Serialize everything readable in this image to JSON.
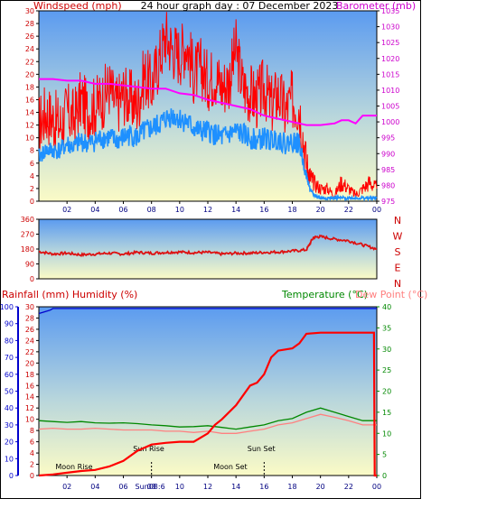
{
  "title": "24 hour graph day : 07 December 2023",
  "colors": {
    "wind": "#ff0000",
    "gust_bg": "#ff0000",
    "wind_avg": "#1e90ff",
    "baro": "#ff00ff",
    "direction": "#dd1111",
    "rain": "#ff0000",
    "humidity": "#0000cc",
    "temperature": "#008800",
    "dewpoint": "#ff8080",
    "sky_top": "#5b9bf0",
    "sky_bottom": "#fbfbc6"
  },
  "chart_data": [
    {
      "type": "line",
      "name": "wind-baro",
      "title": "24 hour graph day : 07 December 2023",
      "ylabel_left": "Windspeed (mph)",
      "ylabel_right": "Barometer (mb)",
      "ylim_left": [
        0,
        30
      ],
      "ylim_right": [
        975,
        1035
      ],
      "yticks_left": [
        "0",
        "2",
        "4",
        "6",
        "8",
        "10",
        "12",
        "14",
        "16",
        "18",
        "20",
        "22",
        "24",
        "26",
        "28",
        "30"
      ],
      "yticks_right": [
        "975",
        "980",
        "985",
        "990",
        "995",
        "1000",
        "1005",
        "1010",
        "1015",
        "1020",
        "1025",
        "1030",
        "1035"
      ],
      "xticks": [
        "02",
        "04",
        "06",
        "08",
        "10",
        "12",
        "14",
        "16",
        "18",
        "20",
        "22",
        "00"
      ],
      "xlim": [
        0,
        24
      ],
      "grid": false,
      "series": [
        {
          "key": "wind_gust",
          "x": [
            0,
            0.5,
            1,
            1.5,
            2,
            2.5,
            3,
            3.5,
            4,
            4.5,
            5,
            5.5,
            6,
            6.5,
            7,
            7.5,
            8,
            8.5,
            9,
            9.5,
            10,
            10.5,
            11,
            11.5,
            12,
            12.5,
            13,
            13.5,
            14,
            14.5,
            15,
            15.5,
            16,
            16.5,
            17,
            17.5,
            18,
            18.5,
            19,
            19.25,
            19.5,
            20,
            20.5,
            21,
            21.5,
            22,
            22.5,
            23,
            23.5,
            24
          ],
          "values": [
            12,
            14,
            13,
            12,
            14,
            13,
            16,
            14,
            15,
            16,
            18,
            15,
            17,
            16,
            15,
            20,
            18,
            22,
            26,
            24,
            23,
            25,
            20,
            21,
            19,
            20,
            18,
            19,
            24,
            18,
            17,
            16,
            18,
            15,
            17,
            14,
            16,
            15,
            6,
            4,
            3,
            2,
            2,
            1,
            3,
            2,
            1,
            2,
            3,
            2
          ]
        },
        {
          "key": "wind_avg",
          "x": [
            0,
            0.5,
            1,
            1.5,
            2,
            2.5,
            3,
            3.5,
            4,
            4.5,
            5,
            5.5,
            6,
            6.5,
            7,
            7.5,
            8,
            8.5,
            9,
            9.5,
            10,
            10.5,
            11,
            11.5,
            12,
            12.5,
            13,
            13.5,
            14,
            14.5,
            15,
            15.5,
            16,
            16.5,
            17,
            17.5,
            18,
            18.5,
            19,
            19.25,
            19.5,
            20,
            20.5,
            21,
            21.5,
            22,
            22.5,
            23,
            23.5,
            24
          ],
          "values": [
            7,
            8,
            8,
            8,
            9,
            8.5,
            9.5,
            9,
            9.5,
            10,
            10,
            9.5,
            10,
            10.5,
            10,
            11,
            11.5,
            12,
            13,
            13.5,
            13,
            12.5,
            11.5,
            11,
            11,
            10.5,
            10,
            10.5,
            11,
            10.5,
            10,
            9.5,
            10,
            9.5,
            10,
            9,
            9.5,
            9,
            4,
            2,
            1,
            0.5,
            0.5,
            0.5,
            0.5,
            0.5,
            0.5,
            0.5,
            0.5,
            0.5
          ]
        },
        {
          "key": "barometer",
          "x": [
            0,
            1,
            2,
            3,
            4,
            5,
            6,
            7,
            8,
            9,
            10,
            11,
            12,
            13,
            14,
            15,
            16,
            17,
            18,
            18.5,
            19,
            20,
            21,
            21.5,
            22,
            22.5,
            23,
            24
          ],
          "values": [
            1013.5,
            1013.5,
            1013,
            1013,
            1012,
            1012,
            1011.5,
            1011,
            1010.5,
            1010.5,
            1009,
            1008.5,
            1007,
            1006,
            1005,
            1004,
            1002,
            1001,
            1000,
            999.5,
            999,
            999,
            999.5,
            1000.5,
            1000.5,
            999.5,
            1002,
            1002
          ]
        }
      ]
    },
    {
      "type": "line",
      "name": "wind-direction",
      "ylim": [
        0,
        360
      ],
      "yticks": [
        "0",
        "90",
        "180",
        "270",
        "360"
      ],
      "compass": [
        "N",
        "W",
        "S",
        "E",
        "N"
      ],
      "xlim": [
        0,
        24
      ],
      "series": [
        {
          "key": "direction",
          "x": [
            0,
            1,
            2,
            3,
            4,
            5,
            6,
            7,
            8,
            9,
            10,
            11,
            12,
            13,
            14,
            15,
            16,
            17,
            18,
            19,
            19.5,
            20,
            21,
            22,
            23,
            24
          ],
          "values": [
            165,
            150,
            155,
            145,
            150,
            155,
            150,
            160,
            155,
            160,
            162,
            158,
            160,
            150,
            155,
            155,
            160,
            162,
            168,
            175,
            250,
            255,
            240,
            230,
            205,
            180
          ]
        }
      ]
    },
    {
      "type": "line",
      "name": "rain-humidity-temp",
      "ylabel_left": "Rainfall (mm)  Humidity (%)",
      "ylabel_right_temp": "Temperature (°C)",
      "ylabel_right_dew": "Dew Point (°C)",
      "ylim_humidity": [
        0,
        100
      ],
      "ylim_rain": [
        0,
        30
      ],
      "ylim_temp": [
        0,
        40
      ],
      "yticks_humidity": [
        "0",
        "10",
        "20",
        "30",
        "40",
        "50",
        "60",
        "70",
        "80",
        "90",
        "100"
      ],
      "yticks_rain": [
        "0",
        "2",
        "4",
        "6",
        "8",
        "10",
        "12",
        "14",
        "16",
        "18",
        "20",
        "22",
        "24",
        "26",
        "28",
        "30"
      ],
      "yticks_temp": [
        "0",
        "5",
        "10",
        "15",
        "20",
        "25",
        "30",
        "35",
        "40"
      ],
      "xticks": [
        "02",
        "04",
        "06",
        "08",
        "10",
        "12",
        "14",
        "16",
        "18",
        "20",
        "22",
        "00"
      ],
      "xlim": [
        0,
        24
      ],
      "annotations": [
        {
          "text": "Moon Rise",
          "x": 2.5
        },
        {
          "text": "Sun Rise",
          "x": 7.8
        },
        {
          "text": "Moon Set",
          "x": 13.6
        },
        {
          "text": "Sun Set",
          "x": 15.8
        },
        {
          "text": "Sun08:6",
          "x": 7.9
        }
      ],
      "series": [
        {
          "key": "humidity",
          "x": [
            0,
            0.4,
            0.8,
            1,
            24
          ],
          "values": [
            96,
            97,
            98,
            99,
            99
          ]
        },
        {
          "key": "rainfall",
          "x": [
            0,
            1,
            2,
            3,
            4,
            5,
            6,
            7,
            8,
            9,
            10,
            11,
            12,
            12.5,
            13,
            14,
            15,
            15.5,
            16,
            16.5,
            17,
            18,
            18.5,
            19,
            20,
            21,
            22,
            23,
            23.8,
            23.85,
            24
          ],
          "values": [
            0,
            0.2,
            0.5,
            0.8,
            1,
            1.6,
            2.6,
            4.4,
            5.5,
            5.8,
            6,
            6,
            7.5,
            9,
            10,
            12.5,
            16,
            16.5,
            18,
            21,
            22.2,
            22.6,
            23.5,
            25.2,
            25.4,
            25.4,
            25.4,
            25.4,
            25.4,
            0,
            0
          ]
        },
        {
          "key": "temperature",
          "x": [
            0,
            1,
            2,
            3,
            4,
            5,
            6,
            7,
            8,
            9,
            10,
            11,
            12,
            13,
            14,
            15,
            16,
            17,
            18,
            19,
            20,
            21,
            22,
            23,
            24
          ],
          "values": [
            13,
            12.8,
            12.6,
            12.8,
            12.5,
            12.4,
            12.5,
            12.3,
            12,
            11.8,
            11.5,
            11.6,
            11.8,
            11.4,
            11,
            11.5,
            12,
            13,
            13.5,
            15,
            16,
            15,
            14,
            13,
            13
          ]
        },
        {
          "key": "dewpoint",
          "x": [
            0,
            1,
            2,
            3,
            4,
            5,
            6,
            7,
            8,
            9,
            10,
            11,
            12,
            13,
            14,
            15,
            16,
            17,
            18,
            19,
            20,
            21,
            22,
            23,
            24
          ],
          "values": [
            11,
            11.2,
            11,
            11,
            11.2,
            11,
            10.8,
            10.8,
            10.8,
            10.5,
            10.5,
            10.2,
            10.5,
            10,
            10,
            10.5,
            11,
            12,
            12.5,
            13.5,
            14.5,
            13.8,
            13,
            12,
            12
          ]
        }
      ]
    }
  ]
}
